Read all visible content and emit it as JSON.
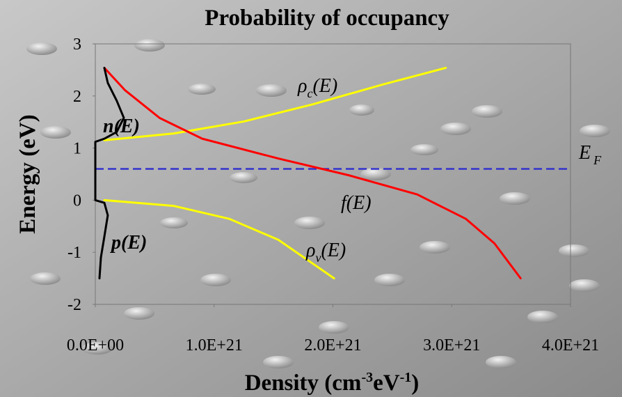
{
  "chart_data": {
    "type": "line",
    "title": "Probability of occupancy",
    "xlabel": [
      "Density (cm",
      "-3",
      "eV",
      "-1",
      ")"
    ],
    "ylabel": "Energy (eV)",
    "xlim": [
      0,
      4e+21
    ],
    "ylim": [
      -2,
      3
    ],
    "xticks": [
      {
        "value": 0,
        "label": "0.0E+00"
      },
      {
        "value": 1e+21,
        "label": "1.0E+21"
      },
      {
        "value": 2e+21,
        "label": "2.0E+21"
      },
      {
        "value": 3e+21,
        "label": "3.0E+21"
      },
      {
        "value": 4e+21,
        "label": "4.0E+21"
      }
    ],
    "yticks": [
      -2,
      -1,
      0,
      1,
      2,
      3
    ],
    "fermi_level": 0.6,
    "fermi_color": "#3333cc",
    "series": [
      {
        "color": "#ffff00",
        "x": [
          7.6e+19,
          6.6e+20,
          1.25e+21,
          1.83e+21,
          2.42e+21,
          2.95e+21
        ],
        "values": [
          1.15,
          1.28,
          1.51,
          1.84,
          2.22,
          2.54
        ]
      },
      {
        "color": "#ffff00",
        "x": [
          7.6e+19,
          6.6e+20,
          1.13e+21,
          1.54e+21,
          2.01e+21
        ],
        "values": [
          0.0,
          -0.11,
          -0.36,
          -0.76,
          -1.5
        ]
      },
      {
        "color": "#ff0000",
        "x": [
          7.6e+19,
          2.5e+20,
          5.4e+20,
          9e+20,
          1.54e+21,
          2.13e+21,
          2.71e+21,
          3.12e+21,
          3.36e+21,
          3.58e+21
        ],
        "values": [
          2.54,
          2.11,
          1.58,
          1.18,
          0.8,
          0.48,
          0.11,
          -0.36,
          -0.83,
          -1.5
        ]
      },
      {
        "color": "#000000",
        "x": [
          7.6e+19,
          1.05e+20,
          1.8e+20,
          2.4e+20,
          1.8e+20,
          7.6e+19,
          0,
          0,
          7.6e+19,
          1.05e+20,
          7.6e+19,
          4.7e+19,
          3.5e+19
        ],
        "values": [
          2.54,
          2.25,
          1.91,
          1.58,
          1.31,
          1.18,
          1.12,
          0,
          -0.05,
          -0.29,
          -0.7,
          -1.1,
          -1.5
        ]
      }
    ],
    "annotations": {
      "rho_c": [
        "ρ",
        "c",
        "(E)"
      ],
      "rho_v": [
        "ρ",
        "v",
        "(E)"
      ],
      "n": "n(E)",
      "p": "p(E)",
      "f": "f(E)",
      "ef": [
        "E",
        "F"
      ]
    }
  }
}
